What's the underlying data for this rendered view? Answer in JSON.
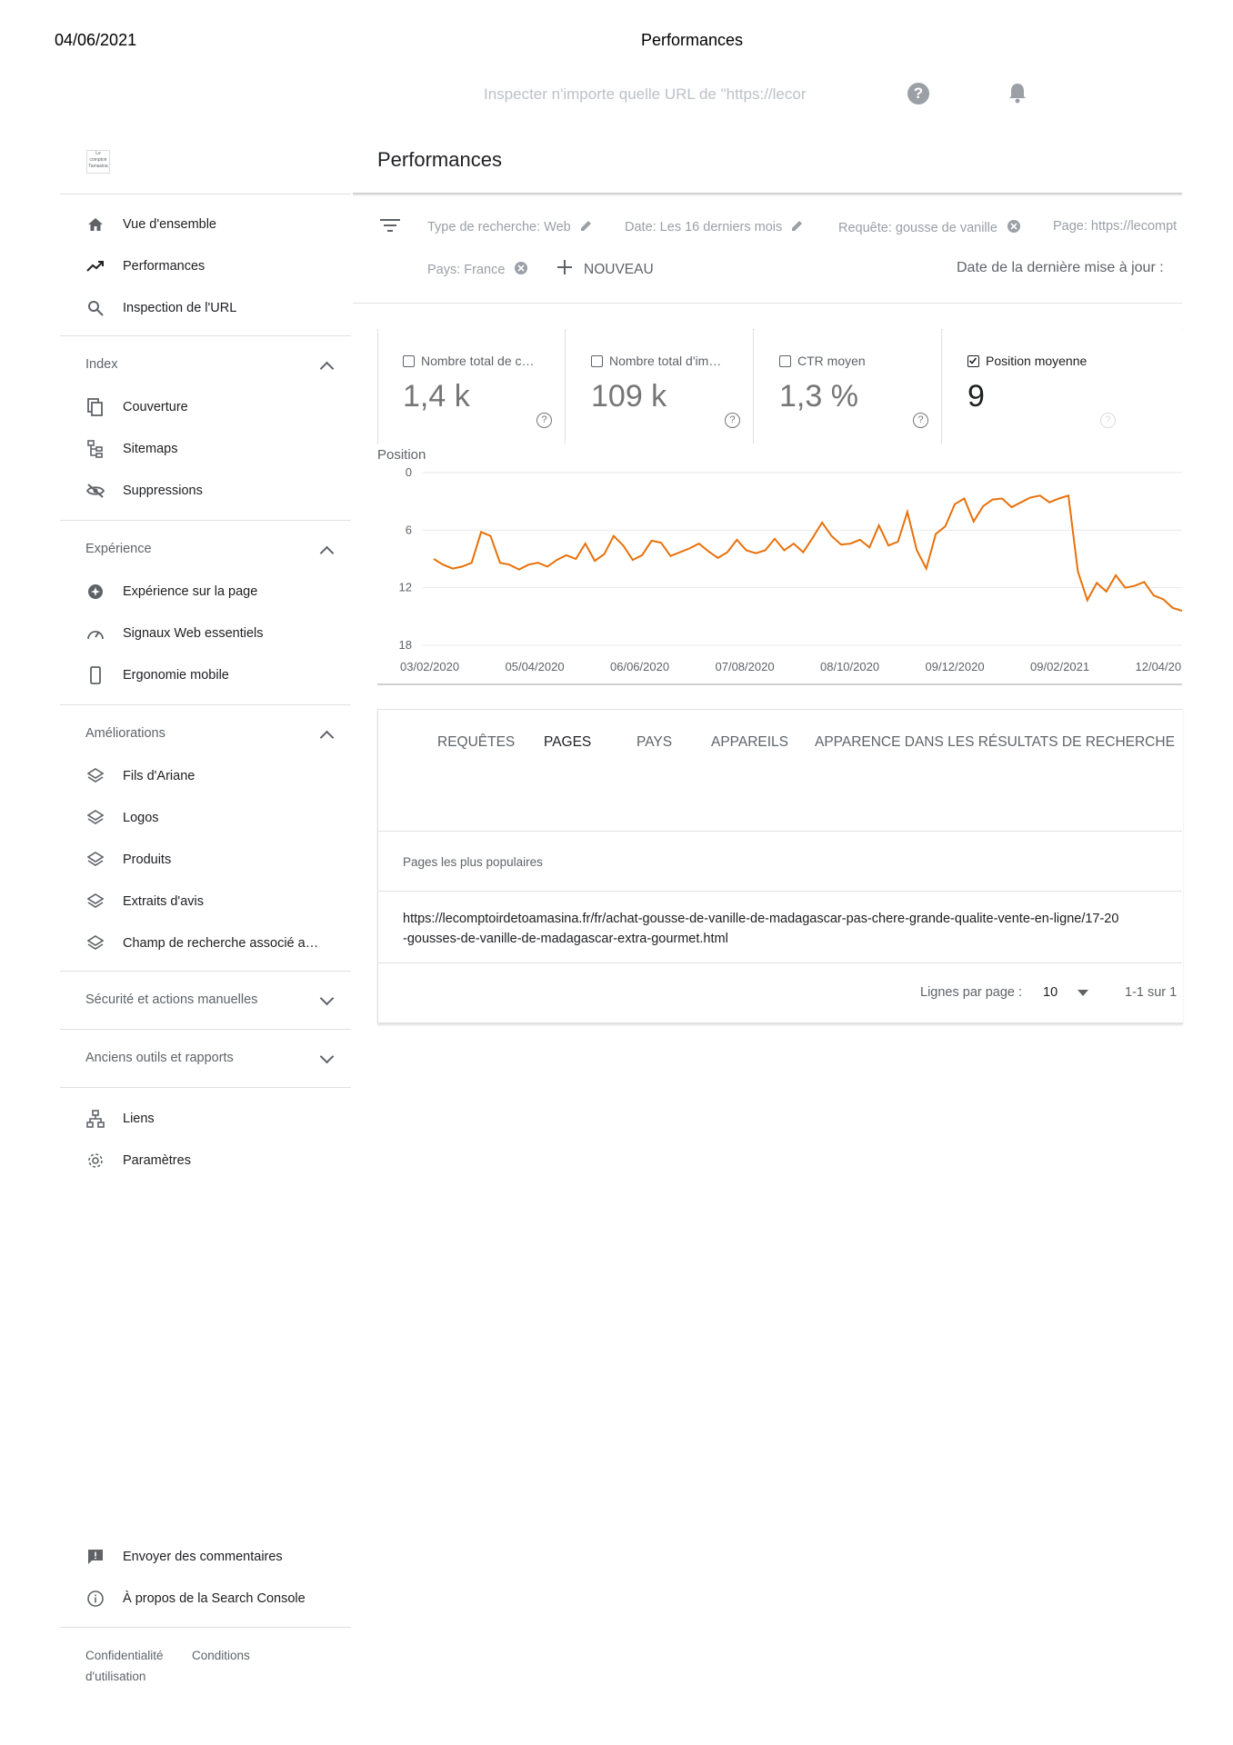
{
  "print": {
    "date": "04/06/2021",
    "title": "Performances"
  },
  "topbar": {
    "search_placeholder": "Inspecter n'importe quelle URL de \"https://lecor"
  },
  "logo": {
    "text": "Le comptoir Tamasina"
  },
  "sidebar": {
    "main": [
      "Vue d'ensemble",
      "Performances",
      "Inspection de l'URL"
    ],
    "index": {
      "title": "Index",
      "items": [
        "Couverture",
        "Sitemaps",
        "Suppressions"
      ]
    },
    "experience": {
      "title": "Expérience",
      "items": [
        "Expérience sur la page",
        "Signaux Web essentiels",
        "Ergonomie mobile"
      ]
    },
    "ameliorations": {
      "title": "Améliorations",
      "items": [
        "Fils d'Ariane",
        "Logos",
        "Produits",
        "Extraits d'avis",
        "Champ de recherche associé a…"
      ]
    },
    "securite": "Sécurité et actions manuelles",
    "anciens": "Anciens outils et rapports",
    "bottom": [
      "Liens",
      "Paramètres"
    ],
    "footer_actions": [
      "Envoyer des commentaires",
      "À propos de la Search Console"
    ],
    "footer_links": {
      "privacy": "Confidentialité",
      "terms_1": "Conditions",
      "terms_2": "d'utilisation"
    }
  },
  "main": {
    "title": "Performances",
    "filters": {
      "search_type": "Type de recherche: Web",
      "date": "Date: Les 16 derniers mois",
      "query": "Requête: gousse de vanille",
      "page": "Page: https://lecompt",
      "country": "Pays: France",
      "new": "NOUVEAU",
      "last_update": "Date de la dernière mise à jour :"
    },
    "metrics": [
      {
        "label": "Nombre total de c…",
        "value": "1,4 k",
        "checked": false
      },
      {
        "label": "Nombre total d'im…",
        "value": "109 k",
        "checked": false
      },
      {
        "label": "CTR moyen",
        "value": "1,3 %",
        "checked": false
      },
      {
        "label": "Position moyenne",
        "value": "9",
        "checked": true
      }
    ],
    "tabs": [
      "REQUÊTES",
      "PAGES",
      "PAYS",
      "APPAREILS",
      "APPARENCE DANS LES RÉSULTATS DE RECHERCHE"
    ],
    "table": {
      "header": "Pages les plus populaires",
      "row_1": "https://lecomptoirdetoamasina.fr/fr/achat-gousse-de-vanille-de-madagascar-pas-chere-grande-qualite-vente-en-ligne/17-20",
      "row_2": "-gousses-de-vanille-de-madagascar-extra-gourmet.html"
    },
    "pagination": {
      "rows_label": "Lignes par page :",
      "rows_value": "10",
      "range": "1-1 sur 1"
    }
  },
  "colors": {
    "line": "#e8710a",
    "grid": "#e8eaed"
  },
  "chart_data": {
    "type": "line",
    "title": "",
    "ylabel": "Position",
    "ylim": [
      18,
      0
    ],
    "yticks": [
      "0",
      "6",
      "12",
      "18"
    ],
    "xticks": [
      "03/02/2020",
      "05/04/2020",
      "06/06/2020",
      "07/08/2020",
      "08/10/2020",
      "09/12/2020",
      "09/02/2021",
      "12/04/20"
    ],
    "series": [
      {
        "values": [
          9.0,
          9.6,
          10.0,
          9.8,
          9.4,
          6.2,
          6.6,
          9.4,
          9.6,
          10.1,
          9.6,
          9.4,
          9.8,
          9.1,
          8.6,
          9.0,
          7.4,
          9.2,
          8.5,
          6.6,
          7.6,
          9.1,
          8.6,
          7.1,
          7.3,
          8.7,
          8.3,
          7.9,
          7.4,
          8.2,
          8.9,
          8.3,
          7.0,
          8.1,
          8.4,
          8.1,
          6.9,
          8.1,
          7.4,
          8.3,
          6.8,
          5.2,
          6.6,
          7.5,
          7.4,
          7.0,
          7.8,
          5.5,
          7.6,
          7.2,
          4.1,
          8.1,
          10.0,
          6.4,
          5.6,
          3.3,
          2.7,
          5.1,
          3.5,
          2.8,
          2.7,
          3.6,
          3.1,
          2.6,
          2.4,
          3.1,
          2.7,
          2.4,
          10.3,
          13.3,
          11.5,
          12.4,
          10.7,
          12.0,
          11.8,
          11.4,
          12.8,
          13.2,
          14.1,
          14.4
        ]
      }
    ]
  }
}
